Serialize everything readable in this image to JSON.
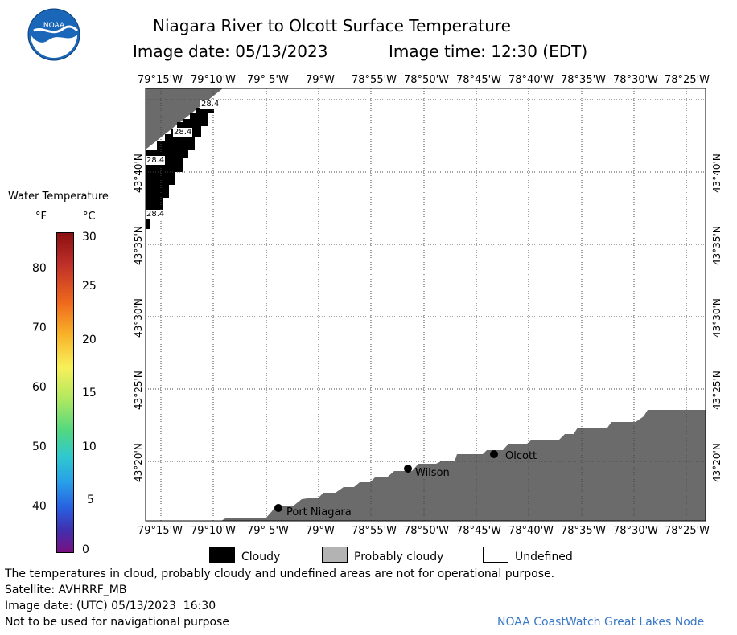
{
  "header": {
    "title": "Niagara River to Olcott Surface Temperature",
    "image_date": "Image date: 05/13/2023",
    "image_time": "Image time: 12:30 (EDT)"
  },
  "logo": {
    "text": "NOAA"
  },
  "map": {
    "lon_labels": [
      "79°15'W",
      "79°10'W",
      "79° 5'W",
      "79°W",
      "78°55'W",
      "78°50'W",
      "78°45'W",
      "78°40'W",
      "78°35'W",
      "78°30'W",
      "78°25'W"
    ],
    "lat_labels": [
      "43°40'N",
      "43°35'N",
      "43°30'N",
      "43°25'N",
      "43°20'N"
    ],
    "temp_labels": [
      "28.4",
      "28.4",
      "28.4",
      "28.4"
    ],
    "places": [
      {
        "name": "Port Niagara"
      },
      {
        "name": "Wilson"
      },
      {
        "name": "Olcott"
      }
    ],
    "colors": {
      "cloudy": "#000000",
      "probably_cloudy": "#6b6b6b",
      "grid": "#444444"
    }
  },
  "colorbar": {
    "title": "Water Temperature",
    "unit_f": "°F",
    "unit_c": "°C",
    "f_ticks": [
      "80",
      "70",
      "60",
      "50",
      "40"
    ],
    "c_ticks": [
      "30",
      "25",
      "20",
      "15",
      "10",
      "5",
      "0"
    ]
  },
  "legend": {
    "cloudy": "Cloudy",
    "probably_cloudy": "Probably cloudy",
    "undefined": "Undefined"
  },
  "footer": {
    "note": "The temperatures in cloud, probably cloudy and undefined areas are not for operational purpose.",
    "satellite": "Satellite: AVHRRF_MB",
    "utc_date": "Image date: (UTC) 05/13/2023  16:30",
    "nav": "Not to be used for navigational purpose",
    "credit": "NOAA CoastWatch Great Lakes Node"
  }
}
